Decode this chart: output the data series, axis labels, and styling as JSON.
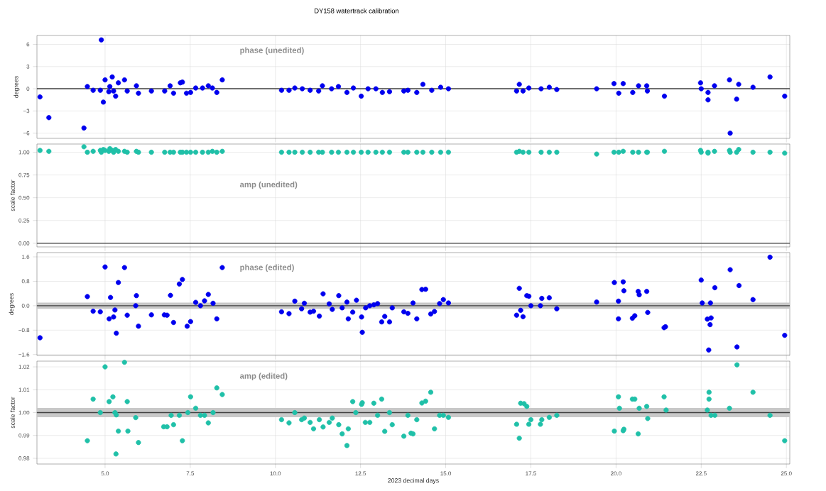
{
  "chart_data": [
    {
      "type": "scatter",
      "title": "DY158 watertrack calibration",
      "ylabel": "degrees",
      "annotations": [
        "phase (unedited)"
      ],
      "color": "#0000ee",
      "marker": "circle",
      "grid": true,
      "tick_labels": "y",
      "xlim": [
        3.0,
        25.1
      ],
      "xticks": [
        5,
        7.5,
        10,
        12.5,
        15,
        17.5,
        20,
        22.5,
        25
      ],
      "ylim": [
        -6.7,
        7.2
      ],
      "yticks": [
        6,
        3,
        0,
        {
          "value": -3,
          "label": "−3"
        },
        {
          "value": -6,
          "label": "−6"
        }
      ],
      "ref_lines": [
        {
          "axis": "y",
          "value": 0,
          "color": "#404040"
        }
      ],
      "x": [
        3.09,
        3.35,
        4.38,
        4.48,
        4.65,
        4.86,
        4.89,
        4.95,
        5.0,
        5.11,
        5.14,
        5.21,
        5.25,
        5.31,
        5.39,
        5.57,
        5.65,
        5.92,
        5.98,
        6.36,
        6.75,
        6.91,
        7.01,
        7.21,
        7.27,
        7.39,
        7.51,
        7.66,
        7.86,
        8.03,
        8.15,
        8.28,
        8.44,
        10.18,
        10.4,
        10.57,
        10.79,
        11.02,
        11.27,
        11.38,
        11.65,
        11.85,
        12.1,
        12.29,
        12.52,
        12.72,
        12.95,
        13.14,
        13.35,
        13.77,
        13.89,
        14.15,
        14.33,
        14.59,
        14.85,
        15.08,
        17.08,
        17.16,
        17.27,
        17.44,
        17.8,
        18.04,
        18.26,
        19.43,
        19.94,
        20.08,
        20.21,
        20.49,
        20.66,
        20.9,
        20.92,
        21.42,
        22.48,
        22.5,
        22.7,
        22.7,
        22.89,
        23.33,
        23.35,
        23.54,
        23.6,
        24.02,
        24.52,
        24.95
      ],
      "values": [
        -1.1,
        -3.9,
        -5.3,
        0.3,
        -0.2,
        -0.2,
        6.6,
        -1.8,
        1.2,
        -0.4,
        0.3,
        1.6,
        -0.3,
        -1.0,
        0.8,
        1.2,
        -0.3,
        0.4,
        -0.6,
        -0.3,
        -0.3,
        0.4,
        -0.6,
        0.8,
        0.9,
        -0.6,
        -0.5,
        0.1,
        0.1,
        0.4,
        0.1,
        -0.5,
        1.2,
        -0.2,
        -0.2,
        0.1,
        0,
        -0.2,
        -0.3,
        0.4,
        0,
        0.3,
        -0.5,
        0.1,
        -1.0,
        0,
        0,
        -0.5,
        -0.4,
        -0.3,
        -0.2,
        -0.5,
        0.6,
        -0.2,
        0.2,
        0,
        -0.3,
        0.6,
        -0.3,
        0.1,
        0,
        0.2,
        -0.1,
        0,
        0.7,
        -0.6,
        0.7,
        -0.5,
        0.4,
        0.4,
        -0.3,
        -1.0,
        0.8,
        0,
        -0.5,
        -1.5,
        0.4,
        1.2,
        -6.0,
        -1.4,
        0.6,
        0.2,
        1.6,
        -1.0
      ]
    },
    {
      "type": "scatter",
      "ylabel": "scale factor",
      "annotations": [
        "amp (unedited)"
      ],
      "color": "#20c0a8",
      "marker": "circle",
      "grid": true,
      "tick_labels": "y",
      "xlim": [
        3.0,
        25.1
      ],
      "xticks": [
        5,
        7.5,
        10,
        12.5,
        15,
        17.5,
        20,
        22.5,
        25
      ],
      "ylim": [
        -0.04,
        1.09
      ],
      "yticks": [
        {
          "value": 0,
          "label": "0.00"
        },
        {
          "value": 0.25,
          "label": "0.25"
        },
        {
          "value": 0.5,
          "label": "0.50"
        },
        {
          "value": 0.75,
          "label": "0.75"
        },
        {
          "value": 1,
          "label": "1.00"
        }
      ],
      "ref_lines": [
        {
          "axis": "y",
          "value": 0,
          "color": "#404040"
        }
      ],
      "x": [
        3.09,
        3.35,
        4.38,
        4.48,
        4.65,
        4.86,
        4.89,
        4.95,
        5.0,
        5.11,
        5.14,
        5.21,
        5.25,
        5.31,
        5.39,
        5.57,
        5.65,
        5.92,
        5.98,
        6.36,
        6.75,
        6.91,
        7.01,
        7.21,
        7.27,
        7.39,
        7.51,
        7.66,
        7.86,
        8.03,
        8.15,
        8.28,
        8.44,
        10.18,
        10.4,
        10.57,
        10.79,
        11.02,
        11.27,
        11.38,
        11.65,
        11.85,
        12.1,
        12.29,
        12.52,
        12.72,
        12.95,
        13.14,
        13.35,
        13.77,
        13.89,
        14.15,
        14.33,
        14.59,
        14.85,
        15.08,
        17.08,
        17.16,
        17.27,
        17.44,
        17.8,
        18.04,
        18.26,
        19.43,
        19.94,
        20.08,
        20.21,
        20.49,
        20.66,
        20.9,
        20.92,
        21.42,
        22.48,
        22.5,
        22.7,
        22.7,
        22.89,
        23.33,
        23.35,
        23.54,
        23.6,
        24.02,
        24.52,
        24.95
      ],
      "values": [
        1.02,
        1.01,
        1.06,
        1.0,
        1.01,
        1.02,
        1.0,
        1.03,
        1.02,
        1.01,
        1.04,
        1.02,
        1.0,
        1.03,
        1.01,
        1.01,
        1.0,
        1.01,
        1.0,
        1.0,
        1.0,
        1.0,
        1.0,
        1.0,
        1.0,
        1.0,
        1.0,
        1.0,
        1.0,
        1.0,
        1.01,
        1.0,
        1.01,
        1.0,
        1.0,
        1.0,
        1.0,
        1.0,
        1.0,
        1.0,
        1.0,
        1.0,
        1.0,
        1.0,
        1.0,
        1.0,
        1.0,
        1.0,
        1.0,
        1.0,
        1.0,
        1.0,
        1.0,
        1.0,
        1.0,
        1.0,
        1.0,
        1.01,
        1.0,
        1.0,
        1.0,
        1.0,
        1.0,
        0.98,
        1.0,
        1.0,
        1.01,
        1.0,
        1.0,
        1.0,
        1.0,
        1.01,
        1.02,
        1.0,
        0.99,
        1.0,
        1.01,
        1.02,
        1.0,
        1.0,
        1.03,
        1.0,
        1.0,
        0.99
      ]
    },
    {
      "type": "scatter",
      "ylabel": "degrees",
      "annotations": [
        "phase (edited)"
      ],
      "color": "#0000ee",
      "marker": "circle",
      "grid": true,
      "tick_labels": "y",
      "xlim": [
        3.0,
        25.1
      ],
      "xticks": [
        5,
        7.5,
        10,
        12.5,
        15,
        17.5,
        20,
        22.5,
        25
      ],
      "ylim": [
        -1.63,
        1.74
      ],
      "yticks": [
        1.6,
        0.8,
        {
          "value": 0,
          "label": "0.0"
        },
        {
          "value": -0.8,
          "label": "−0.8"
        },
        {
          "value": -1.6,
          "label": "−1.6"
        }
      ],
      "ref_lines": [
        {
          "axis": "y",
          "value": 0,
          "color": "#404040"
        }
      ],
      "bands": [
        {
          "axis": "y",
          "from": -0.1,
          "to": 0.1,
          "color": "#c8c8c8"
        }
      ],
      "x": [
        3.09,
        4.48,
        4.65,
        4.86,
        5.0,
        5.16,
        5.12,
        5.25,
        5.29,
        5.33,
        5.39,
        5.57,
        5.65,
        5.92,
        5.9,
        5.98,
        6.36,
        6.74,
        6.82,
        6.92,
        7.01,
        7.18,
        7.27,
        7.41,
        7.51,
        7.66,
        7.8,
        7.92,
        8.03,
        8.17,
        8.28,
        8.44,
        10.18,
        10.4,
        10.57,
        10.77,
        10.85,
        11.02,
        11.12,
        11.29,
        11.4,
        11.58,
        11.67,
        11.86,
        11.96,
        12.1,
        12.14,
        12.27,
        12.38,
        12.53,
        12.55,
        12.65,
        12.77,
        12.89,
        13.0,
        13.12,
        13.21,
        13.35,
        13.43,
        13.77,
        13.89,
        14.04,
        14.15,
        14.3,
        14.41,
        14.56,
        14.67,
        14.82,
        14.93,
        15.08,
        17.08,
        17.16,
        17.2,
        17.27,
        17.38,
        17.44,
        17.5,
        17.78,
        17.82,
        18.04,
        18.26,
        19.43,
        19.95,
        20.07,
        20.07,
        20.21,
        20.23,
        20.48,
        20.55,
        20.65,
        20.68,
        20.9,
        20.93,
        21.41,
        21.45,
        22.5,
        22.53,
        22.77,
        22.68,
        22.79,
        22.76,
        22.72,
        22.9,
        23.35,
        23.55,
        23.61,
        24.02,
        24.52,
        24.95
      ],
      "values": [
        -1.05,
        0.3,
        -0.18,
        -0.2,
        1.27,
        0.27,
        -0.43,
        -0.37,
        -0.14,
        -0.9,
        0.76,
        1.25,
        -0.31,
        0.33,
        0.0,
        -0.67,
        -0.3,
        -0.3,
        -0.31,
        0.34,
        -0.55,
        0.71,
        0.86,
        -0.67,
        -0.52,
        0.11,
        0.0,
        0.16,
        0.37,
        0.08,
        -0.43,
        1.25,
        -0.2,
        -0.26,
        0.15,
        -0.1,
        0.08,
        -0.21,
        -0.18,
        -0.34,
        0.39,
        0.06,
        -0.12,
        0.33,
        -0.07,
        0.12,
        -0.43,
        -0.21,
        0.18,
        -0.37,
        -0.87,
        -0.07,
        0.0,
        0.03,
        0.07,
        -0.53,
        -0.35,
        -0.53,
        -0.07,
        -0.2,
        -0.25,
        0.09,
        -0.43,
        0.53,
        0.54,
        -0.27,
        -0.19,
        0.07,
        0.2,
        0.09,
        -0.31,
        0.57,
        -0.15,
        -0.36,
        0.33,
        0.31,
        0.0,
        0.0,
        0.24,
        0.26,
        -0.1,
        0.12,
        0.76,
        0.15,
        -0.43,
        0.78,
        0.49,
        -0.41,
        -0.33,
        0.47,
        0.36,
        0.47,
        -0.22,
        -0.72,
        -0.69,
        0.84,
        0.09,
        0.09,
        -0.44,
        -0.4,
        -0.62,
        -1.45,
        0.59,
        1.18,
        -1.35,
        0.66,
        0.2,
        1.59,
        -0.97
      ]
    },
    {
      "type": "scatter",
      "xlabel": "2023 decimal days",
      "ylabel": "scale factor",
      "annotations": [
        "amp (edited)"
      ],
      "color": "#20c0a8",
      "marker": "circle",
      "grid": true,
      "xlim": [
        3.0,
        25.1
      ],
      "xticks": [
        {
          "value": 5,
          "label": "5.0"
        },
        7.5,
        {
          "value": 10,
          "label": "10.0"
        },
        12.5,
        {
          "value": 15,
          "label": "15.0"
        },
        17.5,
        {
          "value": 20,
          "label": "20.0"
        },
        22.5,
        {
          "value": 25,
          "label": "25.0"
        }
      ],
      "ylim": [
        0.9775,
        1.0225
      ],
      "yticks": [
        {
          "value": 0.98,
          "label": "0.98"
        },
        {
          "value": 0.99,
          "label": "0.99"
        },
        {
          "value": 1,
          "label": "1.00"
        },
        {
          "value": 1.01,
          "label": "1.01"
        },
        {
          "value": 1.02,
          "label": "1.02"
        }
      ],
      "ref_lines": [
        {
          "axis": "y",
          "value": 1,
          "color": "#404040"
        }
      ],
      "bands": [
        {
          "axis": "y",
          "from": 0.998,
          "to": 1.002,
          "color": "#c8c8c8"
        }
      ],
      "x": [
        4.48,
        4.65,
        4.86,
        5.0,
        5.12,
        5.23,
        5.29,
        5.33,
        5.39,
        5.32,
        5.57,
        5.65,
        5.67,
        5.9,
        5.98,
        6.72,
        6.82,
        6.94,
        7.01,
        7.18,
        7.27,
        7.43,
        7.51,
        7.66,
        7.8,
        7.92,
        8.03,
        8.17,
        8.28,
        8.44,
        10.18,
        10.4,
        10.57,
        10.77,
        10.85,
        11.02,
        11.12,
        11.29,
        11.4,
        11.58,
        11.67,
        11.86,
        11.96,
        12.14,
        12.1,
        12.27,
        12.36,
        12.53,
        12.55,
        12.64,
        12.77,
        12.89,
        13.0,
        13.12,
        13.21,
        13.35,
        13.43,
        13.77,
        13.89,
        13.98,
        14.04,
        14.15,
        14.3,
        14.41,
        14.56,
        14.67,
        14.82,
        14.93,
        15.08,
        17.08,
        17.16,
        17.2,
        17.3,
        17.38,
        17.44,
        17.5,
        17.78,
        17.82,
        18.04,
        18.26,
        19.95,
        20.07,
        20.1,
        20.21,
        20.23,
        20.48,
        20.55,
        20.65,
        20.68,
        20.9,
        20.93,
        21.41,
        21.47,
        22.73,
        22.73,
        22.68,
        22.79,
        22.9,
        23.33,
        23.55,
        24.02,
        24.52,
        24.95
      ],
      "values": [
        0.9877,
        1.0059,
        1.0,
        1.02,
        1.0048,
        1.0069,
        1.0,
        0.999,
        0.9919,
        0.9819,
        1.022,
        1.0048,
        0.9919,
        0.9978,
        0.9869,
        0.9938,
        0.9938,
        0.9988,
        0.9947,
        0.9988,
        0.9877,
        1.0,
        1.0069,
        1.0019,
        0.9988,
        0.9988,
        0.9955,
        1.0,
        1.0108,
        1.0079,
        0.9969,
        0.9955,
        1.0,
        0.9969,
        0.9976,
        0.9957,
        0.9929,
        0.9969,
        0.9937,
        0.9957,
        0.9976,
        0.9947,
        0.9907,
        0.9929,
        0.9856,
        1.0048,
        1.0,
        1.0036,
        1.0043,
        0.9957,
        0.9957,
        1.0041,
        0.9988,
        1.0059,
        0.9918,
        1.0,
        0.9947,
        0.9897,
        0.9988,
        0.991,
        0.9907,
        0.9969,
        1.0042,
        1.005,
        1.0089,
        0.9929,
        0.9988,
        0.9988,
        0.9979,
        0.9949,
        0.9888,
        1.0041,
        1.0039,
        1.0027,
        0.9949,
        0.9969,
        0.9949,
        0.9969,
        0.9979,
        0.9988,
        0.9919,
        1.0069,
        1.0019,
        0.9921,
        0.9927,
        1.0059,
        1.0059,
        0.9907,
        1.0019,
        1.0027,
        0.9974,
        1.0069,
        1.0011,
        1.0089,
        1.0059,
        1.0011,
        0.9988,
        0.9988,
        1.0019,
        1.0209,
        1.0089,
        0.9988,
        0.9877
      ]
    }
  ]
}
